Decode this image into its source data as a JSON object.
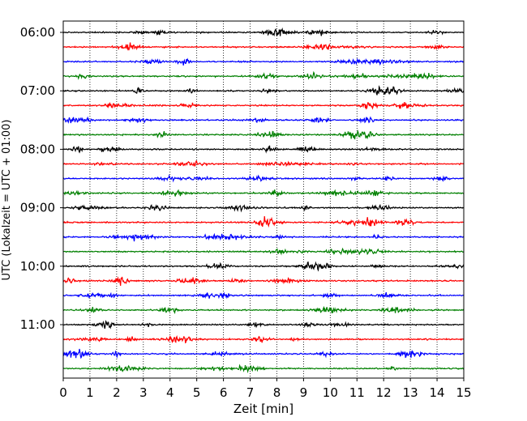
{
  "chart_data": {
    "type": "line",
    "title": "",
    "xlabel": "Zeit  [min]",
    "ylabel": "UTC (Lokalzeit = UTC + 01:00)",
    "xlim": [
      0,
      15
    ],
    "x_ticks": [
      0,
      1,
      2,
      3,
      4,
      5,
      6,
      7,
      8,
      9,
      10,
      11,
      12,
      13,
      14,
      15
    ],
    "y_tick_labels": [
      "06:00",
      "07:00",
      "08:00",
      "09:00",
      "10:00",
      "11:00"
    ],
    "grid": "vertical dotted lines at each minute",
    "series_colors": [
      "#000000",
      "#ff0000",
      "#0000ff",
      "#008000"
    ],
    "trace_start_times": [
      "06:00",
      "06:15",
      "06:30",
      "06:45",
      "07:00",
      "07:15",
      "07:30",
      "07:45",
      "08:00",
      "08:15",
      "08:30",
      "08:45",
      "09:00",
      "09:15",
      "09:30",
      "09:45",
      "10:00",
      "10:15",
      "10:30",
      "10:45",
      "11:00",
      "11:15",
      "11:30",
      "11:45"
    ]
  }
}
